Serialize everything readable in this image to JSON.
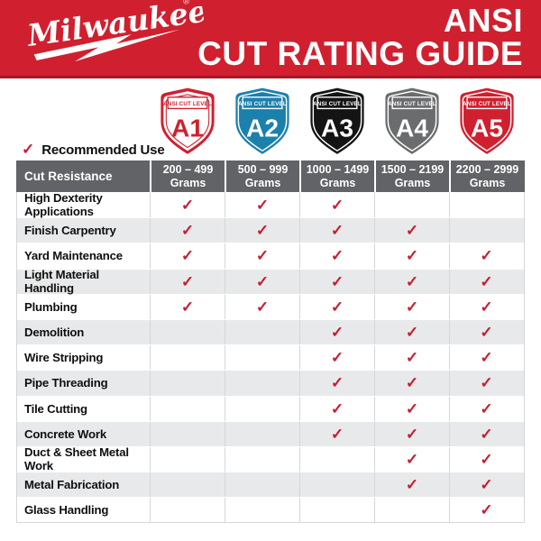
{
  "colors": {
    "brand_red": "#D0202F",
    "banner_edge_red": "#A91523",
    "check_red": "#C41E30",
    "header_gray": "#626366",
    "row_alt_gray": "#E8E9EA",
    "divider_gray": "#D5D6D8",
    "shield_blue": "#1C80AD",
    "shield_black": "#141414",
    "shield_gray": "#6B6C6E",
    "white": "#ffffff"
  },
  "banner": {
    "brand": "Milwaukee",
    "brand_mark": "®",
    "title_line1": "ANSI",
    "title_line2": "CUT RATING GUIDE"
  },
  "shields": {
    "badge_label": "ANSI CUT LEVEL",
    "levels": [
      {
        "code": "A1",
        "color": "#D0202F",
        "style": "outline"
      },
      {
        "code": "A2",
        "color": "#1C80AD",
        "style": "solid"
      },
      {
        "code": "A3",
        "color": "#141414",
        "style": "solid"
      },
      {
        "code": "A4",
        "color": "#6B6C6E",
        "style": "solid"
      },
      {
        "code": "A5",
        "color": "#D0202F",
        "style": "solid"
      }
    ]
  },
  "legend": {
    "check_glyph": "✓",
    "label": "Recommended Use"
  },
  "chart_data": {
    "type": "table",
    "title": "ANSI CUT RATING GUIDE",
    "row_header": "Cut Resistance",
    "columns": [
      "200 – 499 Grams",
      "500 – 999 Grams",
      "1000 – 1499 Grams",
      "1500 – 2199 Grams",
      "2200 – 2999 Grams"
    ],
    "column_lines": [
      [
        "200 – 499",
        "Grams"
      ],
      [
        "500 – 999",
        "Grams"
      ],
      [
        "1000 – 1499",
        "Grams"
      ],
      [
        "1500 – 2199",
        "Grams"
      ],
      [
        "2200 – 2999",
        "Grams"
      ]
    ],
    "levels": [
      "A1",
      "A2",
      "A3",
      "A4",
      "A5"
    ],
    "rows": [
      {
        "label": "High Dexterity Applications",
        "recommended": [
          true,
          true,
          true,
          false,
          false
        ]
      },
      {
        "label": "Finish Carpentry",
        "recommended": [
          true,
          true,
          true,
          true,
          false
        ]
      },
      {
        "label": "Yard Maintenance",
        "recommended": [
          true,
          true,
          true,
          true,
          true
        ]
      },
      {
        "label": "Light Material Handling",
        "recommended": [
          true,
          true,
          true,
          true,
          true
        ]
      },
      {
        "label": "Plumbing",
        "recommended": [
          true,
          true,
          true,
          true,
          true
        ]
      },
      {
        "label": "Demolition",
        "recommended": [
          false,
          false,
          true,
          true,
          true
        ]
      },
      {
        "label": "Wire Stripping",
        "recommended": [
          false,
          false,
          true,
          true,
          true
        ]
      },
      {
        "label": "Pipe Threading",
        "recommended": [
          false,
          false,
          true,
          true,
          true
        ]
      },
      {
        "label": "Tile Cutting",
        "recommended": [
          false,
          false,
          true,
          true,
          true
        ]
      },
      {
        "label": "Concrete Work",
        "recommended": [
          false,
          false,
          true,
          true,
          true
        ]
      },
      {
        "label": "Duct & Sheet Metal Work",
        "recommended": [
          false,
          false,
          false,
          true,
          true
        ]
      },
      {
        "label": "Metal Fabrication",
        "recommended": [
          false,
          false,
          false,
          true,
          true
        ]
      },
      {
        "label": "Glass Handling",
        "recommended": [
          false,
          false,
          false,
          false,
          true
        ]
      }
    ]
  }
}
